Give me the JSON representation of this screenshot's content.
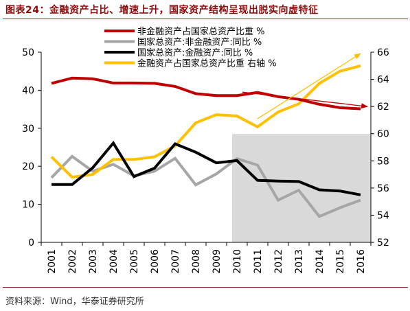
{
  "title": "图表24：金融资产占比、增速上升，国家资产结构呈现出脱实向虚特征",
  "source": "资料来源：Wind，华泰证券研究所",
  "colors": {
    "red": "#c00000",
    "gray": "#a6a6a6",
    "black": "#000000",
    "gold": "#ffc000",
    "shade": "#d9d9d9",
    "title": "#8b0a0a"
  },
  "chart_data": {
    "type": "line",
    "x": [
      "2001",
      "2002",
      "2003",
      "2004",
      "2005",
      "2006",
      "2007",
      "2008",
      "2009",
      "2010",
      "2011",
      "2012",
      "2013",
      "2014",
      "2015",
      "2016"
    ],
    "left_axis": {
      "ylim": [
        0,
        50
      ],
      "ticks": [
        0,
        10,
        20,
        30,
        40,
        50
      ]
    },
    "right_axis": {
      "ylim": [
        52,
        66
      ],
      "ticks": [
        52,
        54,
        56,
        58,
        60,
        62,
        64,
        66
      ]
    },
    "shaded_region": {
      "from": "2010",
      "to": "2016"
    },
    "series": [
      {
        "name": "非金融资产占国家总资产比重 %",
        "axis": "left",
        "color": "#c00000",
        "values": [
          41.8,
          43.2,
          43.0,
          41.9,
          41.9,
          41.8,
          41.0,
          39.1,
          38.6,
          38.6,
          39.4,
          38.3,
          37.6,
          36.3,
          35.4,
          35.1
        ]
      },
      {
        "name": "国家总资产:非金融资产:同比 %",
        "axis": "left",
        "color": "#a6a6a6",
        "values": [
          17.0,
          22.6,
          18.7,
          20.5,
          17.5,
          18.7,
          22.1,
          15.1,
          18.0,
          22.0,
          20.3,
          11.1,
          13.7,
          6.8,
          9.1,
          11.1
        ]
      },
      {
        "name": "国家总资产:金融资产:同比 %",
        "axis": "left",
        "color": "#000000",
        "values": [
          15.2,
          15.2,
          19.6,
          26.1,
          17.3,
          19.5,
          25.9,
          23.7,
          20.9,
          21.5,
          16.3,
          16.1,
          16.0,
          13.8,
          13.5,
          12.5
        ]
      },
      {
        "name": "金融资产占国家总资产比重 右轴 %",
        "axis": "right",
        "color": "#ffc000",
        "values": [
          58.3,
          56.8,
          57.0,
          58.1,
          58.1,
          58.3,
          59.1,
          60.8,
          61.4,
          61.3,
          60.5,
          61.6,
          62.2,
          63.7,
          64.6,
          65.0
        ]
      }
    ],
    "trend_arrows": [
      {
        "color": "#c00000",
        "from": [
          "2010",
          39.5
        ],
        "to": [
          "2016",
          35.7
        ],
        "axis": "left"
      },
      {
        "color": "#ffc000",
        "from": [
          "2011",
          61.1
        ],
        "to": [
          "2016",
          65.9
        ],
        "axis": "right"
      }
    ]
  }
}
